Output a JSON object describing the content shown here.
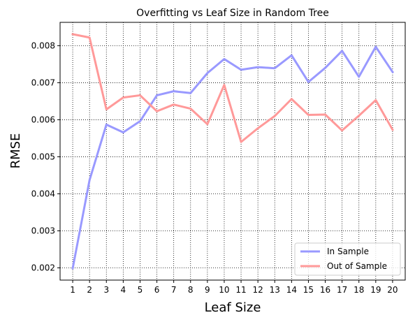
{
  "chart_data": {
    "type": "line",
    "title": "Overfitting vs Leaf Size in Random Tree",
    "xlabel": "Leaf Size",
    "ylabel": "RMSE",
    "x": [
      1,
      2,
      3,
      4,
      5,
      6,
      7,
      8,
      9,
      10,
      11,
      12,
      13,
      14,
      15,
      16,
      17,
      18,
      19,
      20
    ],
    "xlim": [
      0.25,
      20.75
    ],
    "ylim": [
      0.00167,
      0.00863
    ],
    "yticks": [
      0.002,
      0.003,
      0.004,
      0.005,
      0.006,
      0.007,
      0.008
    ],
    "ytick_labels": [
      "0.002",
      "0.003",
      "0.004",
      "0.005",
      "0.006",
      "0.007",
      "0.008"
    ],
    "grid": true,
    "legend_position": "lower-right",
    "series": [
      {
        "name": "In Sample",
        "color": "#9999ff",
        "values": [
          0.00199,
          0.00437,
          0.00587,
          0.00566,
          0.00596,
          0.00666,
          0.00677,
          0.00672,
          0.00726,
          0.00764,
          0.00735,
          0.00742,
          0.00739,
          0.00774,
          0.00702,
          0.0074,
          0.00786,
          0.00716,
          0.00797,
          0.00729
        ]
      },
      {
        "name": "Out of Sample",
        "color": "#ff9999",
        "values": [
          0.00831,
          0.00822,
          0.00628,
          0.0066,
          0.00666,
          0.00623,
          0.00641,
          0.0063,
          0.00588,
          0.00694,
          0.0054,
          0.00577,
          0.0061,
          0.00656,
          0.00613,
          0.00614,
          0.00571,
          0.00611,
          0.00653,
          0.00573
        ]
      }
    ]
  }
}
